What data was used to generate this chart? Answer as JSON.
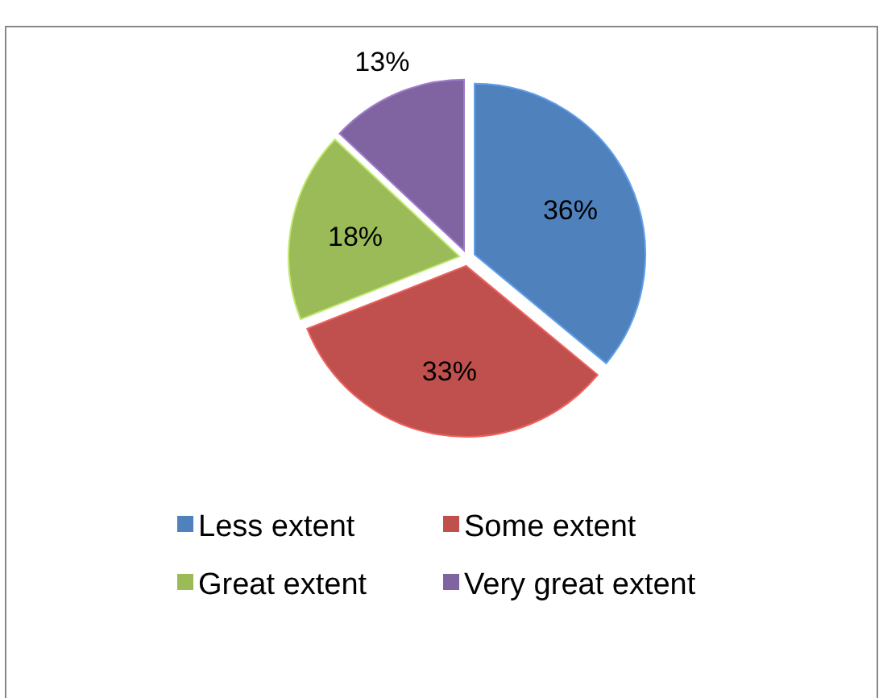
{
  "chart_data": {
    "type": "pie",
    "categories": [
      "Less extent",
      "Some extent",
      "Great extent",
      "Very great extent"
    ],
    "values": [
      36,
      33,
      18,
      13
    ],
    "value_labels": [
      "36%",
      "33%",
      "18%",
      "13%"
    ],
    "colors": [
      "#4f81bd",
      "#c0504d",
      "#9bbb59",
      "#8064a2"
    ],
    "legend": "bottom"
  }
}
